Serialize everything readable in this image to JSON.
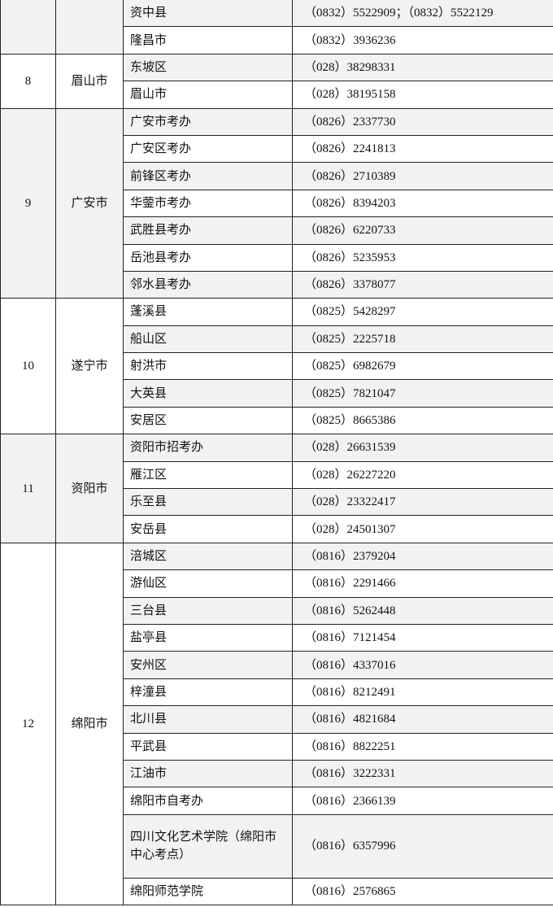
{
  "table": {
    "groups": [
      {
        "rows": [
          {
            "district": "资中县",
            "phone": "（0832）5522909；（0832）5522129"
          },
          {
            "district": "隆昌市",
            "phone": "（0832）3936236"
          }
        ]
      },
      {
        "no": "8",
        "city": "眉山市",
        "rows": [
          {
            "district": "东坡区",
            "phone": "（028）38298331"
          },
          {
            "district": "眉山市",
            "phone": "（028）38195158"
          }
        ]
      },
      {
        "no": "9",
        "city": "广安市",
        "rows": [
          {
            "district": "广安市考办",
            "phone": "（0826）2337730"
          },
          {
            "district": "广安区考办",
            "phone": "（0826）2241813"
          },
          {
            "district": "前锋区考办",
            "phone": "（0826）2710389"
          },
          {
            "district": "华蓥市考办",
            "phone": "（0826）8394203"
          },
          {
            "district": "武胜县考办",
            "phone": "（0826）6220733"
          },
          {
            "district": "岳池县考办",
            "phone": "（0826）5235953"
          },
          {
            "district": "邻水县考办",
            "phone": "（0826）3378077"
          }
        ]
      },
      {
        "no": "10",
        "city": "遂宁市",
        "rows": [
          {
            "district": "蓬溪县",
            "phone": "（0825）5428297"
          },
          {
            "district": "船山区",
            "phone": "（0825）2225718"
          },
          {
            "district": "射洪市",
            "phone": "（0825）6982679"
          },
          {
            "district": "大英县",
            "phone": "（0825）7821047"
          },
          {
            "district": "安居区",
            "phone": "（0825）8665386"
          }
        ]
      },
      {
        "no": "11",
        "city": "资阳市",
        "rows": [
          {
            "district": "资阳市招考办",
            "phone": "（028）26631539"
          },
          {
            "district": "雁江区",
            "phone": "（028）26227220"
          },
          {
            "district": "乐至县",
            "phone": "（028）23322417"
          },
          {
            "district": "安岳县",
            "phone": "（028）24501307"
          }
        ]
      },
      {
        "no": "12",
        "city": "绵阳市",
        "rows": [
          {
            "district": "涪城区",
            "phone": "（0816）2379204"
          },
          {
            "district": "游仙区",
            "phone": "（0816）2291466"
          },
          {
            "district": "三台县",
            "phone": "（0816）5262448"
          },
          {
            "district": "盐亭县",
            "phone": "（0816）7121454"
          },
          {
            "district": "安州区",
            "phone": "（0816）4337016"
          },
          {
            "district": "梓潼县",
            "phone": "（0816）8212491"
          },
          {
            "district": "北川县",
            "phone": "（0816）4821684"
          },
          {
            "district": "平武县",
            "phone": "（0816）8822251"
          },
          {
            "district": "江油市",
            "phone": "（0816）3222331"
          },
          {
            "district": "绵阳市自考办",
            "phone": "（0816）2366139"
          },
          {
            "district": "四川文化艺术学院（绵阳市中心考点）",
            "phone": "（0816）6357996"
          },
          {
            "district": "绵阳师范学院",
            "phone": "（0816）2576865"
          }
        ]
      }
    ]
  }
}
